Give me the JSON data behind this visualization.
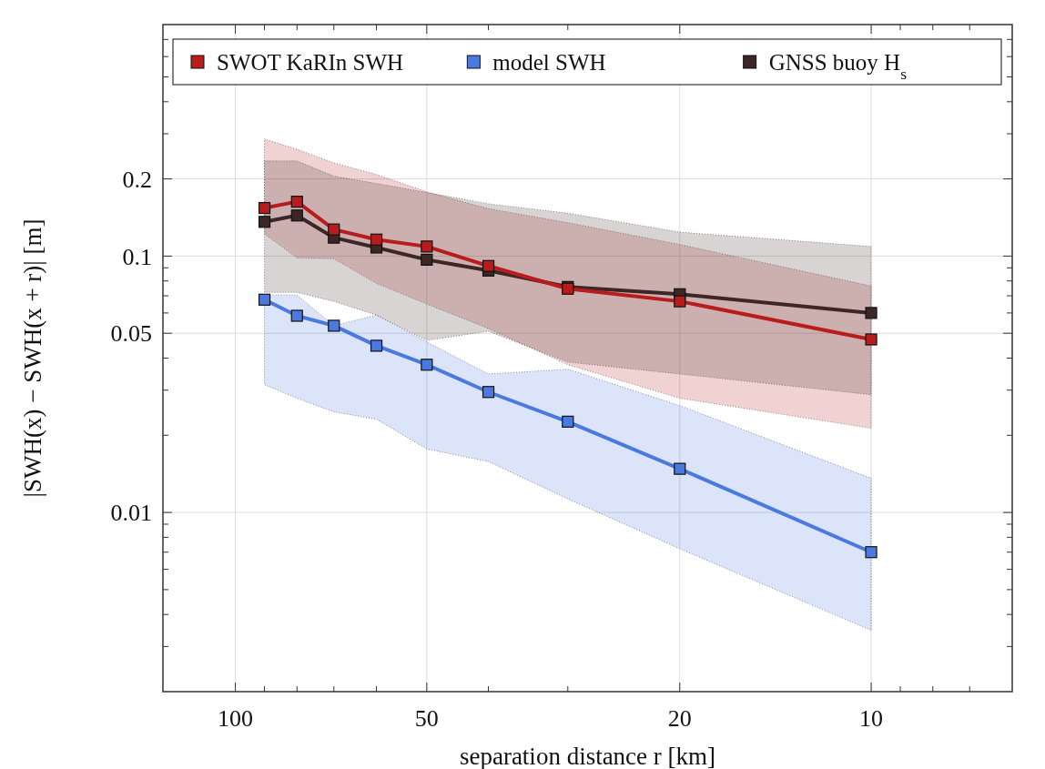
{
  "chart_data": {
    "type": "line",
    "xlabel": "separation distance r [km]",
    "ylabel": "|SWH(x) − SWH(x + r)| [m]",
    "log": "xy",
    "xlim": [
      130,
      6
    ],
    "ylim": [
      0.002,
      0.8
    ],
    "xticks": [
      100,
      {
        "value": 90,
        "label": null
      },
      {
        "value": 80,
        "label": null
      },
      {
        "value": 70,
        "label": null
      },
      {
        "value": 60,
        "label": null
      },
      50,
      {
        "value": 40,
        "label": null
      },
      {
        "value": 30,
        "label": null
      },
      20,
      10,
      {
        "value": 9,
        "label": null
      },
      {
        "value": 8,
        "label": null
      },
      {
        "value": 7,
        "label": null
      }
    ],
    "yticks": [
      {
        "value": 0.003,
        "label": null
      },
      {
        "value": 0.004,
        "label": null
      },
      {
        "value": 0.005,
        "label": null
      },
      {
        "value": 0.006,
        "label": null
      },
      {
        "value": 0.007,
        "label": null
      },
      {
        "value": 0.008,
        "label": null
      },
      {
        "value": 0.009,
        "label": null
      },
      0.01,
      {
        "value": 0.02,
        "label": null
      },
      {
        "value": 0.03,
        "label": null
      },
      {
        "value": 0.04,
        "label": null
      },
      0.05,
      {
        "value": 0.06,
        "label": null
      },
      {
        "value": 0.07,
        "label": null
      },
      {
        "value": 0.08,
        "label": null
      },
      {
        "value": 0.09,
        "label": null
      },
      0.1,
      0.2,
      {
        "value": 0.3,
        "label": null
      },
      {
        "value": 0.4,
        "label": null
      },
      {
        "value": 0.5,
        "label": null
      },
      {
        "value": 0.6,
        "label": null
      },
      {
        "value": 0.7,
        "label": null
      }
    ],
    "grid": true,
    "legend": "top",
    "marker": "square",
    "line_style": "solid",
    "x": [
      90,
      80,
      70,
      60,
      50,
      40,
      30,
      20,
      10
    ],
    "series": [
      {
        "name": "SWOT KaRIn SWH",
        "color": "#b81c1c",
        "values": [
          0.154,
          0.163,
          0.127,
          0.116,
          0.109,
          0.0915,
          0.0746,
          0.0666,
          0.0473
        ],
        "lower": [
          0.122,
          0.0984,
          0.0976,
          0.0783,
          0.065,
          0.0522,
          0.0377,
          0.0279,
          0.0213
        ],
        "upper": [
          0.286,
          0.261,
          0.231,
          0.208,
          0.178,
          0.153,
          0.135,
          0.111,
          0.0764
        ]
      },
      {
        "name": "model SWH",
        "color": "#4a7ae0",
        "values": [
          0.0676,
          0.0585,
          0.0535,
          0.0447,
          0.0377,
          0.0295,
          0.0226,
          0.0148,
          0.007
        ],
        "lower": [
          0.0315,
          0.0279,
          0.0247,
          0.0231,
          0.0177,
          0.0158,
          0.0113,
          0.00722,
          0.00347
        ],
        "upper": [
          0.0705,
          0.0705,
          0.0535,
          0.0589,
          0.0462,
          0.0347,
          0.0362,
          0.0261,
          0.0136
        ]
      },
      {
        "name": "GNSS buoy H$_{s}$",
        "color": "#3d2626",
        "values": [
          0.136,
          0.144,
          0.118,
          0.108,
          0.0968,
          0.0878,
          0.0758,
          0.071,
          0.06
        ],
        "lower": [
          0.0722,
          0.0722,
          0.0666,
          0.0589,
          0.0469,
          0.0509,
          0.0386,
          0.0347,
          0.0288
        ],
        "upper": [
          0.235,
          0.235,
          0.205,
          0.192,
          0.177,
          0.16,
          0.147,
          0.124,
          0.109
        ]
      }
    ]
  }
}
